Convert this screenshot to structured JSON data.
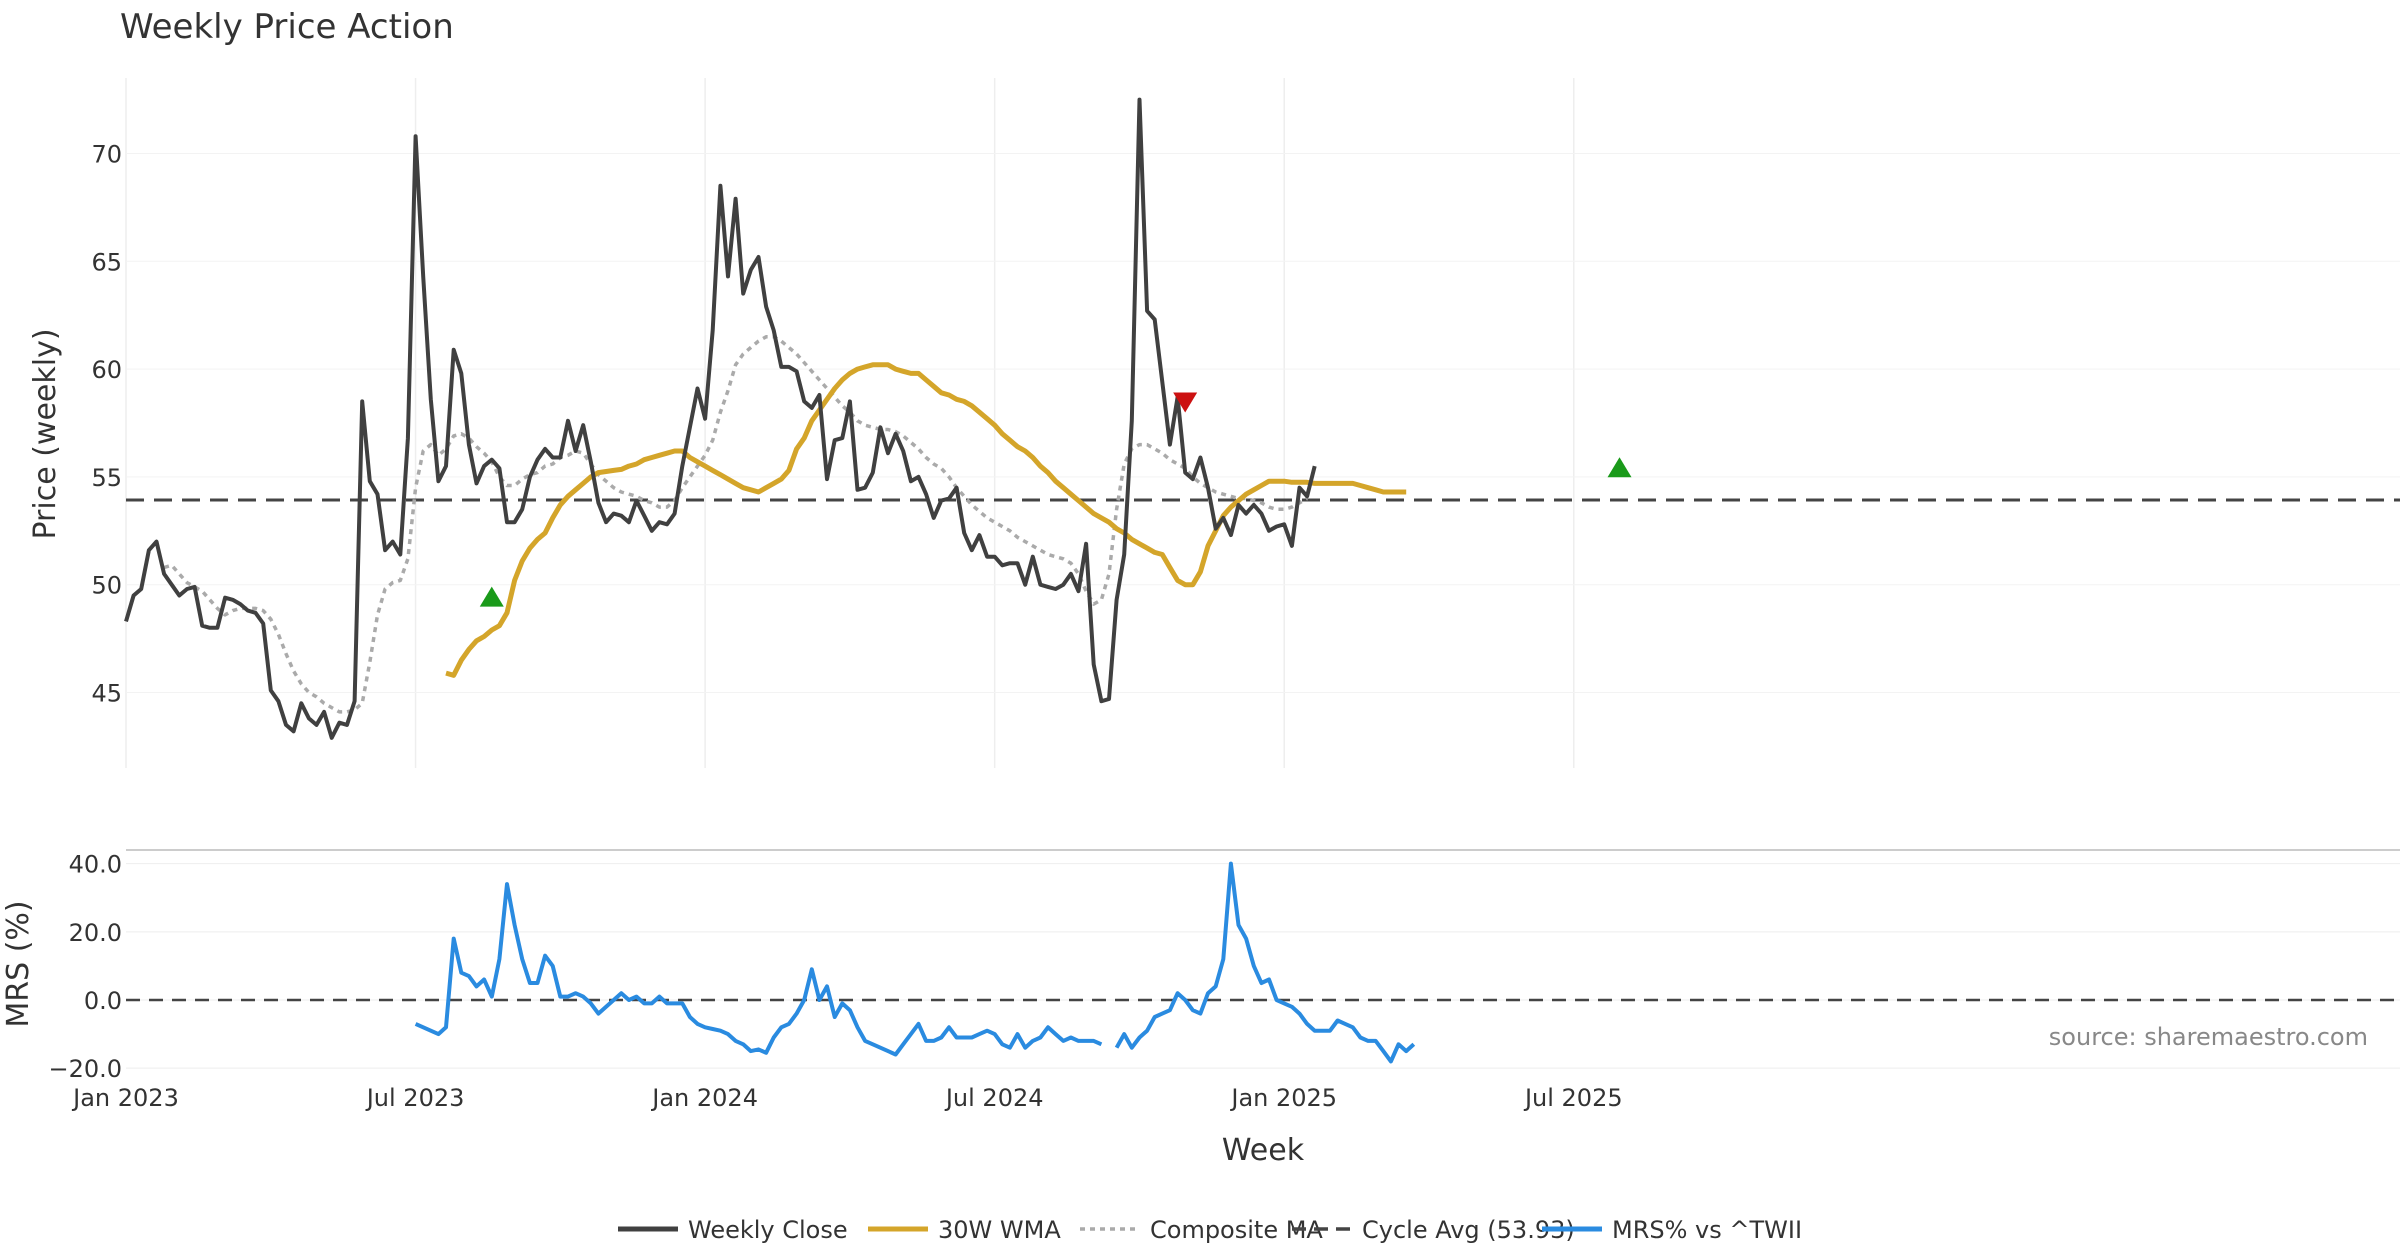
{
  "chart_data": {
    "type": "line",
    "title": "Weekly Price Action",
    "xlabel": "Week",
    "source_note": "source: sharemaestro.com",
    "x_ticks": [
      "Jan 2023",
      "Jul 2023",
      "Jan 2024",
      "Jul 2024",
      "Jan 2025",
      "Jul 2025"
    ],
    "colors": {
      "close": "#404040",
      "wma": "#d4a52a",
      "composite": "#aaaaaa",
      "cycle": "#444444",
      "mrs": "#2a8be0",
      "buy": "#1a9a1a",
      "sell": "#cc1111"
    },
    "price_panel": {
      "ylabel": "Price (weekly)",
      "ylim": [
        41.5,
        73.5
      ],
      "yticks": [
        "45",
        "50",
        "55",
        "60",
        "65",
        "70"
      ],
      "cycle_avg": 53.93,
      "series": {
        "weekly_close": [
          48.3,
          49.5,
          49.8,
          51.6,
          52.0,
          50.5,
          50.0,
          49.5,
          49.8,
          49.9,
          48.1,
          48.0,
          48.0,
          49.4,
          49.3,
          49.1,
          48.8,
          48.7,
          48.2,
          45.1,
          44.6,
          43.5,
          43.2,
          44.5,
          43.8,
          43.5,
          44.1,
          42.9,
          43.6,
          43.5,
          44.6,
          58.5,
          54.8,
          54.2,
          51.6,
          52.0,
          51.4,
          56.8,
          70.8,
          64.3,
          58.6,
          54.8,
          55.5,
          60.9,
          59.8,
          56.5,
          54.7,
          55.5,
          55.8,
          55.4,
          52.9,
          52.9,
          53.5,
          55.0,
          55.8,
          56.3,
          55.9,
          55.9,
          57.6,
          56.2,
          57.4,
          55.7,
          53.8,
          52.9,
          53.3,
          53.2,
          52.9,
          53.9,
          53.2,
          52.5,
          52.9,
          52.8,
          53.3,
          55.5,
          57.3,
          59.1,
          57.7,
          61.8,
          68.5,
          64.3,
          67.9,
          63.5,
          64.6,
          65.2,
          62.9,
          61.8,
          60.1,
          60.1,
          59.9,
          58.5,
          58.2,
          58.8,
          54.9,
          56.7,
          56.8,
          58.5,
          54.4,
          54.5,
          55.2,
          57.3,
          56.1,
          57.0,
          56.2,
          54.8,
          55.0,
          54.2,
          53.1,
          53.9,
          54.0,
          54.5,
          52.4,
          51.6,
          52.3,
          51.3,
          51.3,
          50.9,
          51.0,
          51.0,
          50.0,
          51.3,
          50.0,
          49.9,
          49.8,
          50.0,
          50.5,
          49.7,
          51.9,
          46.3,
          44.6,
          44.7,
          49.3,
          51.4,
          57.6,
          72.5,
          62.7,
          62.3,
          59.4,
          56.5,
          58.7,
          55.2,
          54.9,
          55.9,
          54.5,
          52.6,
          53.1,
          52.3,
          53.7,
          53.3,
          53.7,
          53.3,
          52.5,
          52.7,
          52.8,
          51.8,
          54.5,
          54.1,
          55.5
        ],
        "wma_30w": [
          45.9,
          45.8,
          46.5,
          47.0,
          47.4,
          47.6,
          47.9,
          48.1,
          48.7,
          50.2,
          51.1,
          51.7,
          52.1,
          52.4,
          53.1,
          53.7,
          54.1,
          54.4,
          54.7,
          55.0,
          55.2,
          55.25,
          55.3,
          55.35,
          55.5,
          55.6,
          55.8,
          55.9,
          56.0,
          56.1,
          56.2,
          56.2,
          55.9,
          55.7,
          55.5,
          55.3,
          55.1,
          54.9,
          54.7,
          54.5,
          54.4,
          54.3,
          54.5,
          54.7,
          54.9,
          55.3,
          56.3,
          56.8,
          57.6,
          58.1,
          58.6,
          59.1,
          59.5,
          59.8,
          60.0,
          60.1,
          60.2,
          60.2,
          60.2,
          60.0,
          59.9,
          59.8,
          59.8,
          59.5,
          59.2,
          58.9,
          58.8,
          58.6,
          58.5,
          58.3,
          58.0,
          57.7,
          57.4,
          57.0,
          56.7,
          56.4,
          56.2,
          55.9,
          55.5,
          55.2,
          54.8,
          54.5,
          54.2,
          53.9,
          53.6,
          53.3,
          53.1,
          52.9,
          52.6,
          52.4,
          52.1,
          51.9,
          51.7,
          51.5,
          51.4,
          50.8,
          50.2,
          50.0,
          50.0,
          50.6,
          51.8,
          52.5,
          53.2,
          53.6,
          53.9,
          54.2,
          54.4,
          54.6,
          54.8,
          54.8,
          54.8,
          54.75,
          54.75,
          54.75,
          54.7,
          54.7,
          54.7,
          54.7,
          54.7,
          54.7,
          54.6,
          54.5,
          54.4,
          54.3,
          54.3,
          54.3,
          54.3
        ],
        "composite_ma": [
          50.8,
          50.9,
          50.5,
          50.1,
          49.9,
          49.7,
          49.3,
          48.9,
          48.6,
          48.8,
          48.9,
          48.9,
          48.9,
          48.8,
          48.4,
          47.7,
          46.8,
          46.0,
          45.4,
          45.0,
          44.8,
          44.5,
          44.3,
          44.1,
          44.1,
          44.2,
          44.5,
          46.4,
          48.6,
          49.8,
          50.1,
          50.2,
          51.2,
          54.5,
          56.2,
          56.5,
          56.0,
          56.3,
          56.9,
          57.0,
          56.8,
          56.4,
          56.1,
          55.7,
          55.0,
          54.6,
          54.6,
          54.9,
          55.1,
          55.2,
          55.5,
          55.6,
          55.9,
          56.0,
          56.2,
          56.1,
          55.6,
          55.1,
          54.8,
          54.5,
          54.3,
          54.2,
          54.1,
          53.9,
          53.8,
          53.6,
          53.6,
          53.9,
          54.5,
          55.0,
          55.5,
          56.0,
          56.7,
          58.0,
          59.0,
          60.2,
          60.7,
          61.0,
          61.3,
          61.5,
          61.5,
          61.3,
          61.0,
          60.7,
          60.3,
          59.9,
          59.5,
          59.1,
          58.7,
          58.3,
          58.0,
          57.6,
          57.4,
          57.3,
          57.2,
          57.2,
          57.1,
          56.9,
          56.6,
          56.3,
          55.9,
          55.6,
          55.4,
          55.0,
          54.5,
          54.1,
          53.7,
          53.4,
          53.1,
          52.9,
          52.7,
          52.5,
          52.2,
          52.0,
          51.8,
          51.6,
          51.4,
          51.3,
          51.2,
          51.0,
          50.5,
          49.7,
          49.1,
          49.3,
          50.5,
          53.5,
          55.6,
          56.3,
          56.5,
          56.5,
          56.3,
          56.1,
          55.8,
          55.6,
          55.4,
          55.0,
          54.7,
          54.5,
          54.3,
          54.2,
          54.1,
          54.0,
          54.0,
          53.9,
          53.8,
          53.6,
          53.5,
          53.5,
          53.6,
          53.8,
          54.0
        ]
      },
      "signals": [
        {
          "type": "buy",
          "week": 48,
          "price": 49.4
        },
        {
          "type": "sell",
          "week": 139,
          "price": 58.5
        },
        {
          "type": "buy",
          "week": 196,
          "price": 55.4
        }
      ]
    },
    "mrs_panel": {
      "ylabel": "MRS (%)",
      "ylim": [
        -22,
        44
      ],
      "yticks": [
        "−20.0",
        "0.0",
        "20.0",
        "40.0"
      ],
      "series": {
        "mrs": [
          -7,
          -8,
          -9,
          -10,
          -8,
          18,
          8,
          7,
          4,
          6,
          1,
          12,
          34,
          22,
          12,
          5,
          5,
          13,
          10,
          1,
          1,
          2,
          1,
          -1,
          -4,
          -2,
          0,
          2,
          0,
          1,
          -1,
          -1,
          1,
          -1,
          -1,
          -1,
          -5,
          -7,
          -8,
          -8.5,
          -9,
          -10,
          -12,
          -13,
          -15,
          -14.5,
          -15.5,
          -11,
          -8,
          -7,
          -4,
          0,
          9,
          0,
          4,
          -5,
          -1,
          -3,
          -8,
          -12,
          -13,
          -14,
          -15,
          -16,
          -13,
          -10,
          -7,
          -12,
          -12,
          -11,
          -8,
          -11,
          -11,
          -11,
          -10,
          -9,
          -10,
          -13,
          -14,
          -10,
          -14,
          -12,
          -11,
          -8,
          -10,
          -12,
          -11,
          -12,
          -12,
          -12,
          -13,
          null,
          -14,
          -10,
          -14,
          -11,
          -9,
          -5,
          -4,
          -3,
          2,
          0,
          -3,
          -4,
          2,
          4,
          12,
          40,
          22,
          18,
          10,
          5,
          6,
          0,
          -1,
          -2,
          -4,
          -7,
          -9,
          -9,
          -9,
          -6,
          -7,
          -8,
          -11,
          -12,
          -12,
          -15,
          -18,
          -13,
          -15,
          -13
        ]
      }
    },
    "legend": [
      {
        "label": "Weekly Close",
        "style": "solid",
        "color_key": "close"
      },
      {
        "label": "30W WMA",
        "style": "solid",
        "color_key": "wma"
      },
      {
        "label": "Composite MA",
        "style": "dotted",
        "color_key": "composite"
      },
      {
        "label": "Cycle Avg (53.93)",
        "style": "dashed",
        "color_key": "cycle"
      },
      {
        "label": "MRS% vs ^TWII",
        "style": "solid",
        "color_key": "mrs"
      }
    ]
  }
}
